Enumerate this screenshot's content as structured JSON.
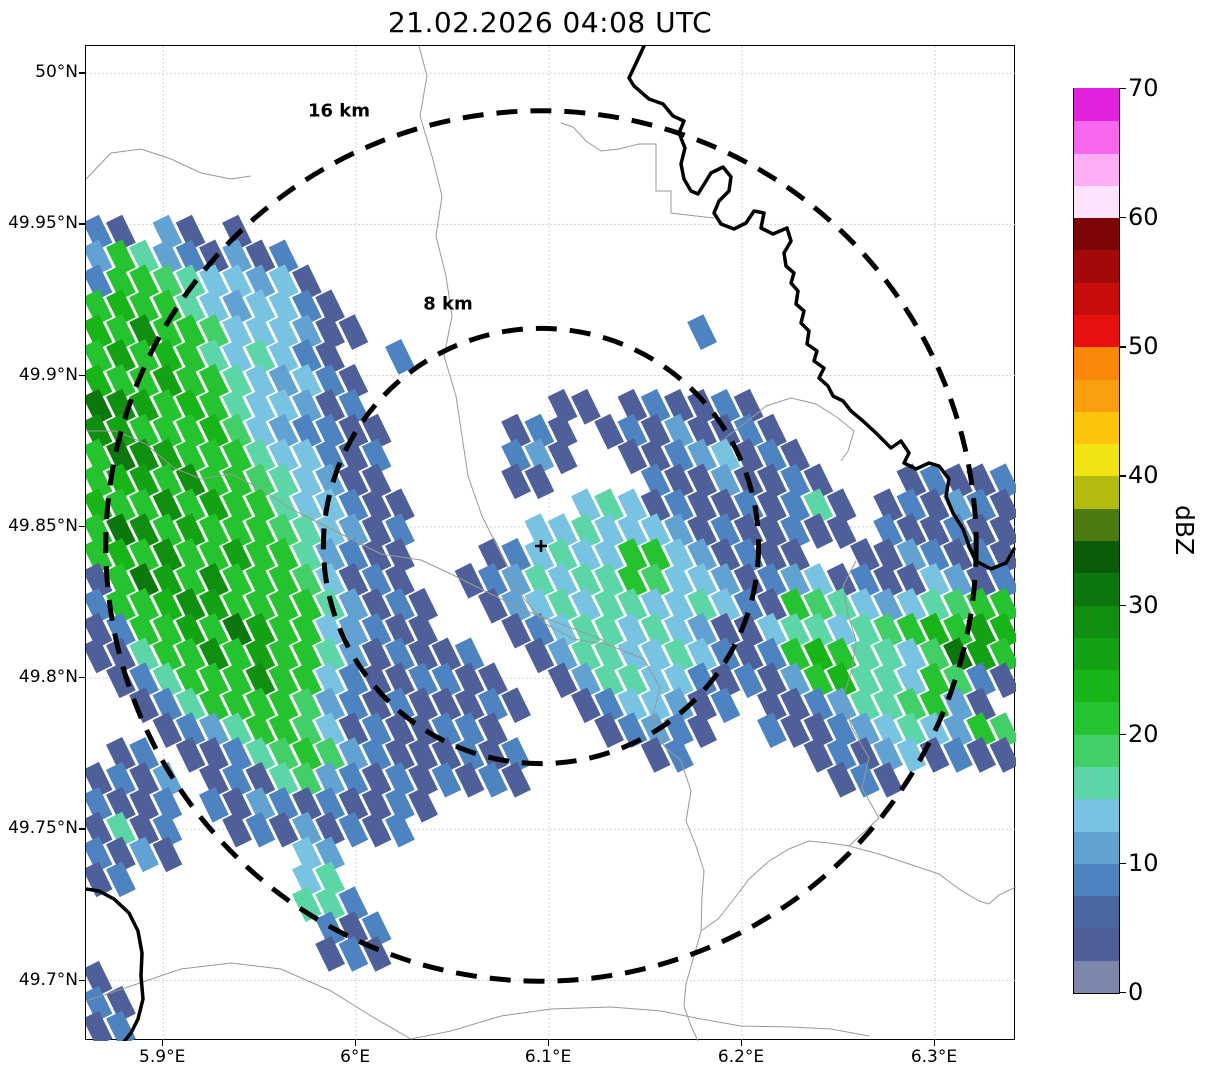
{
  "title": "21.02.2026 04:08 UTC",
  "chart_data": {
    "type": "heatmap",
    "title": "21.02.2026 04:08 UTC",
    "x_ticks": [
      {
        "label": "5.9°E",
        "lon": 5.9
      },
      {
        "label": "6°E",
        "lon": 6.0
      },
      {
        "label": "6.1°E",
        "lon": 6.1
      },
      {
        "label": "6.2°E",
        "lon": 6.2
      },
      {
        "label": "6.3°E",
        "lon": 6.3
      }
    ],
    "y_ticks": [
      {
        "label": "50°N",
        "lat": 50.0
      },
      {
        "label": "49.95°N",
        "lat": 49.95
      },
      {
        "label": "49.9°N",
        "lat": 49.9
      },
      {
        "label": "49.85°N",
        "lat": 49.85
      },
      {
        "label": "49.8°N",
        "lat": 49.8
      },
      {
        "label": "49.75°N",
        "lat": 49.75
      },
      {
        "label": "49.7°N",
        "lat": 49.7
      }
    ],
    "lon_range": [
      5.86,
      6.342
    ],
    "lat_range": [
      49.68,
      50.009
    ],
    "grid_on": true,
    "colorbar": {
      "label": "dBZ",
      "min": 0,
      "max": 70,
      "ticks": [
        0,
        10,
        20,
        30,
        40,
        50,
        60,
        70
      ],
      "levels": [
        {
          "from": 0,
          "to": 2.5,
          "color": "#7d87ab"
        },
        {
          "from": 2.5,
          "to": 5,
          "color": "#4e5f9a"
        },
        {
          "from": 5,
          "to": 7.5,
          "color": "#49689f"
        },
        {
          "from": 7.5,
          "to": 10,
          "color": "#4c83c0"
        },
        {
          "from": 10,
          "to": 12.5,
          "color": "#61a2d2"
        },
        {
          "from": 12.5,
          "to": 15,
          "color": "#78c3e1"
        },
        {
          "from": 15,
          "to": 17.5,
          "color": "#5dd6a7"
        },
        {
          "from": 17.5,
          "to": 20,
          "color": "#43cf68"
        },
        {
          "from": 20,
          "to": 22.5,
          "color": "#25c32f"
        },
        {
          "from": 22.5,
          "to": 25,
          "color": "#18b518"
        },
        {
          "from": 25,
          "to": 27.5,
          "color": "#13a213"
        },
        {
          "from": 27.5,
          "to": 30,
          "color": "#0f8e0f"
        },
        {
          "from": 30,
          "to": 32.5,
          "color": "#0c770c"
        },
        {
          "from": 32.5,
          "to": 35,
          "color": "#095d09"
        },
        {
          "from": 35,
          "to": 37.5,
          "color": "#4d7a10"
        },
        {
          "from": 37.5,
          "to": 40,
          "color": "#b3ba10"
        },
        {
          "from": 40,
          "to": 42.5,
          "color": "#f2e412"
        },
        {
          "from": 42.5,
          "to": 45,
          "color": "#fbc50c"
        },
        {
          "from": 45,
          "to": 47.5,
          "color": "#fa9e0d"
        },
        {
          "from": 47.5,
          "to": 50,
          "color": "#f98708"
        },
        {
          "from": 50,
          "to": 52.5,
          "color": "#e8100f"
        },
        {
          "from": 52.5,
          "to": 55,
          "color": "#c70c0c"
        },
        {
          "from": 55,
          "to": 57.5,
          "color": "#a30909"
        },
        {
          "from": 57.5,
          "to": 60,
          "color": "#7c0606"
        },
        {
          "from": 60,
          "to": 62.5,
          "color": "#fde3fb"
        },
        {
          "from": 62.5,
          "to": 65,
          "color": "#fbaef5"
        },
        {
          "from": 65,
          "to": 67.5,
          "color": "#f767ee"
        },
        {
          "from": 67.5,
          "to": 70,
          "color": "#e322dd"
        }
      ]
    },
    "range_rings": [
      {
        "label": "16 km",
        "radius_km": 16
      },
      {
        "label": "8 km",
        "radius_km": 8
      }
    ],
    "center_marker": "+",
    "reflectivity_grid": {
      "cols": 40,
      "rows": 40,
      "char_levels": {
        "1": 0,
        "2": 1,
        "3": 2,
        "4": 3,
        "5": 4,
        "6": 5,
        "7": 6,
        "8": 7,
        "9": 8,
        "a": 9,
        "b": 10,
        "c": 11,
        "d": 12,
        "e": 13
      },
      "rows_data": [
        "........................................",
        "........................................",
        "........................................",
        "........................................",
        "........................................",
        "........................................",
        "........................................",
        "42.52.2.................................",
        "597542524...............................",
        "4998766562..............................",
        "9a997656642.............................",
        "a9c998666522..............4.............",
        "9b9a9767642..4..........................",
        "a99b99765642............................",
        "dcb9a9766524........22.242242...........",
        "cb999a8654422.....242.24252242..........",
        "9dcb999766424.....452..22456242.........",
        "9ab9c99876522.....22....42252242...24224",
        "a99c9b99766422.......676242242472.242542",
        "9dc9b999876524.....66766652422422.422422",
        "9a9c99b9975422...24676699652422..2254242",
        "29db9c99986242..245767798665245624226524",
        "499acb999975242..25676776676429876567899",
        "2499b9db9965422...246776765226776789a9ba",
        "22799c9b997524224..257766764249a97768db9",
        ".247999c9964224422..257766424259a7769842",
        "..24799998542422242..2466524.2245778952.",
        "...245799862422442....24542..42245676598",
        ".24.224789854222424.....24.....242562422",
        "2425.24278542424242.............242.....",
        "4224.4254242242.........................",
        "2724..24252424..........................",
        "4252.....65.............................",
        "24.......67.............................",
        ".........774............................",
        "..........424...........................",
        "..........242...........................",
        "2.......................................",
        "42......................................",
        "24......................................"
      ]
    }
  }
}
